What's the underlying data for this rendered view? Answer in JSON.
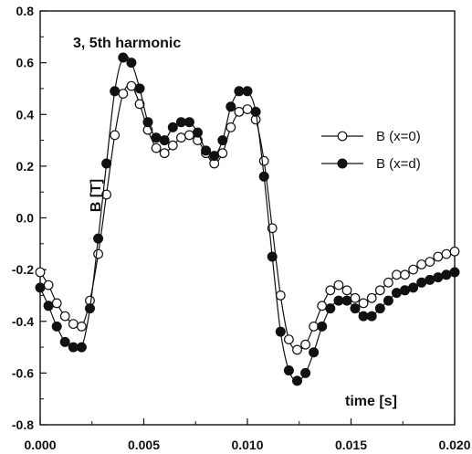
{
  "chart_data": {
    "type": "line",
    "title": "3, 5th harmonic",
    "xlabel": "time [s]",
    "ylabel": "B [T]",
    "xlim": [
      0.0,
      0.02
    ],
    "ylim": [
      -0.8,
      0.8
    ],
    "xticks": [
      0.0,
      0.005,
      0.01,
      0.015,
      0.02
    ],
    "xtick_labels": [
      "0.000",
      "0.005",
      "0.010",
      "0.015",
      "0.020"
    ],
    "yticks": [
      -0.8,
      -0.6,
      -0.4,
      -0.2,
      0.0,
      0.2,
      0.4,
      0.6,
      0.8
    ],
    "ytick_labels": [
      "-0.8",
      "-0.6",
      "-0.4",
      "-0.2",
      "0.0",
      "0.2",
      "0.4",
      "0.6",
      "0.8"
    ],
    "grid": false,
    "legend_position": "right",
    "x": [
      0.0,
      0.0004,
      0.0008,
      0.0012,
      0.0016,
      0.002,
      0.0024,
      0.0028,
      0.0032,
      0.0036,
      0.004,
      0.0044,
      0.0048,
      0.0052,
      0.0056,
      0.006,
      0.0064,
      0.0068,
      0.0072,
      0.0076,
      0.008,
      0.0084,
      0.0088,
      0.0092,
      0.0096,
      0.01,
      0.0104,
      0.0108,
      0.0112,
      0.0116,
      0.012,
      0.0124,
      0.0128,
      0.0132,
      0.0136,
      0.014,
      0.0144,
      0.0148,
      0.0152,
      0.0156,
      0.016,
      0.0164,
      0.0168,
      0.0172,
      0.0176,
      0.018,
      0.0184,
      0.0188,
      0.0192,
      0.0196,
      0.02
    ],
    "series": [
      {
        "name": "B (x=0)",
        "marker": "open-circle",
        "values": [
          -0.21,
          -0.26,
          -0.33,
          -0.38,
          -0.41,
          -0.42,
          -0.32,
          -0.14,
          0.09,
          0.32,
          0.48,
          0.51,
          0.44,
          0.34,
          0.27,
          0.25,
          0.28,
          0.31,
          0.32,
          0.3,
          0.25,
          0.21,
          0.25,
          0.35,
          0.41,
          0.42,
          0.38,
          0.22,
          -0.04,
          -0.3,
          -0.47,
          -0.51,
          -0.49,
          -0.42,
          -0.34,
          -0.28,
          -0.26,
          -0.28,
          -0.31,
          -0.33,
          -0.31,
          -0.28,
          -0.25,
          -0.22,
          -0.22,
          -0.2,
          -0.18,
          -0.17,
          -0.15,
          -0.14,
          -0.13
        ]
      },
      {
        "name": "B (x=d)",
        "marker": "filled-circle",
        "values": [
          -0.27,
          -0.34,
          -0.42,
          -0.48,
          -0.5,
          -0.5,
          -0.35,
          -0.08,
          0.21,
          0.49,
          0.62,
          0.6,
          0.5,
          0.37,
          0.31,
          0.3,
          0.35,
          0.37,
          0.37,
          0.33,
          0.26,
          0.24,
          0.3,
          0.43,
          0.49,
          0.49,
          0.41,
          0.16,
          -0.15,
          -0.44,
          -0.59,
          -0.63,
          -0.6,
          -0.52,
          -0.42,
          -0.35,
          -0.32,
          -0.32,
          -0.35,
          -0.38,
          -0.38,
          -0.35,
          -0.32,
          -0.29,
          -0.28,
          -0.27,
          -0.25,
          -0.24,
          -0.23,
          -0.22,
          -0.21
        ]
      }
    ]
  }
}
